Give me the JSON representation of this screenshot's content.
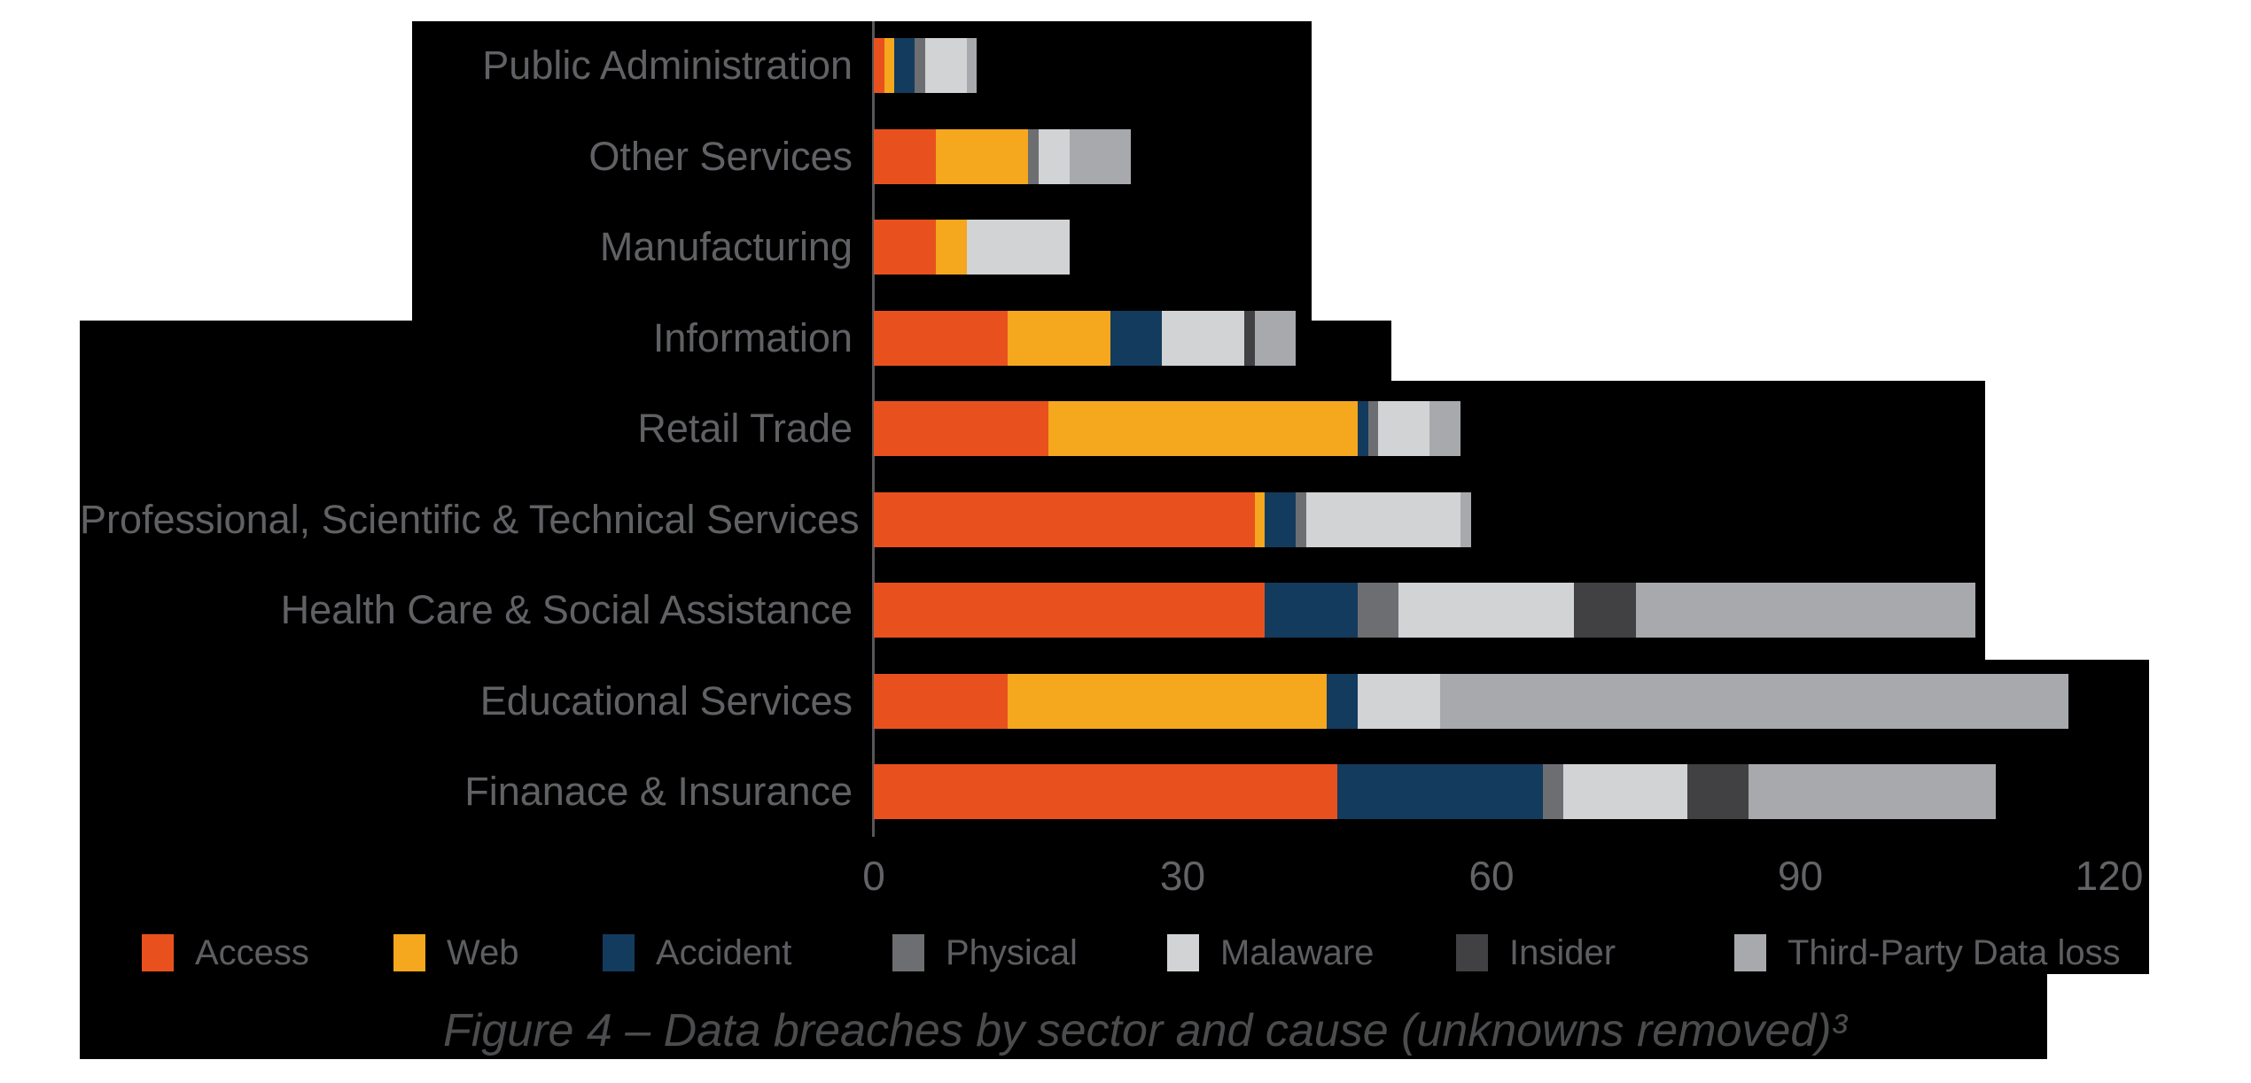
{
  "figure": {
    "caption": "Figure 4 – Data breaches by sector and cause (unknowns removed)³"
  },
  "axis": {
    "tick_labels": [
      "0",
      "30",
      "60",
      "90",
      "120"
    ]
  },
  "chart_data": {
    "type": "bar",
    "orientation": "horizontal-stacked",
    "title": "",
    "xlabel": "",
    "ylabel": "",
    "xlim": [
      0,
      120
    ],
    "x_ticks": [
      0,
      30,
      60,
      90,
      120
    ],
    "grid": false,
    "legend_position": "bottom",
    "background_color": "#000000",
    "categories": [
      "Public Administration",
      "Other Services",
      "Manufacturing",
      "Information",
      "Retail Trade",
      "Professional, Scientific & Technical Services",
      "Health Care & Social Assistance",
      "Educational Services",
      "Finanace & Insurance"
    ],
    "series": [
      {
        "name": "Access",
        "color": "#e8511e",
        "values": [
          1,
          6,
          6,
          13,
          17,
          37,
          38,
          13,
          45
        ]
      },
      {
        "name": "Web",
        "color": "#f5a71d",
        "values": [
          1,
          9,
          3,
          10,
          30,
          1,
          0,
          31,
          0
        ]
      },
      {
        "name": "Accident",
        "color": "#133b5d",
        "values": [
          2,
          0,
          0,
          5,
          1,
          3,
          9,
          3,
          20
        ]
      },
      {
        "name": "Physical",
        "color": "#6d6e71",
        "values": [
          1,
          1,
          0,
          0,
          1,
          1,
          4,
          0,
          2
        ]
      },
      {
        "name": "Malaware",
        "color": "#d1d3d4",
        "values": [
          4,
          3,
          10,
          8,
          5,
          15,
          17,
          8,
          12
        ]
      },
      {
        "name": "Insider",
        "color": "#414042",
        "values": [
          0,
          0,
          0,
          1,
          0,
          0,
          6,
          0,
          6
        ]
      },
      {
        "name": "Third-Party Data loss",
        "color": "#a7a9ac",
        "values": [
          1,
          6,
          0,
          4,
          3,
          1,
          33,
          61,
          24
        ]
      }
    ]
  }
}
